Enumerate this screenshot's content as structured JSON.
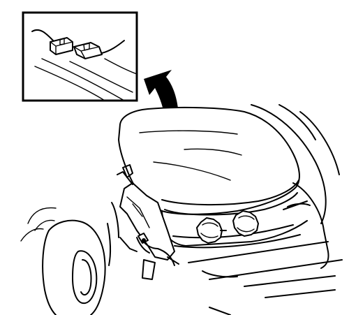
{
  "figure": {
    "description_labels": [],
    "colors": {
      "line": "#000000",
      "background": "#ffffff"
    },
    "icons": {
      "inset": "wiring-connector-detail",
      "arrow": "curved-callout-arrow"
    }
  }
}
